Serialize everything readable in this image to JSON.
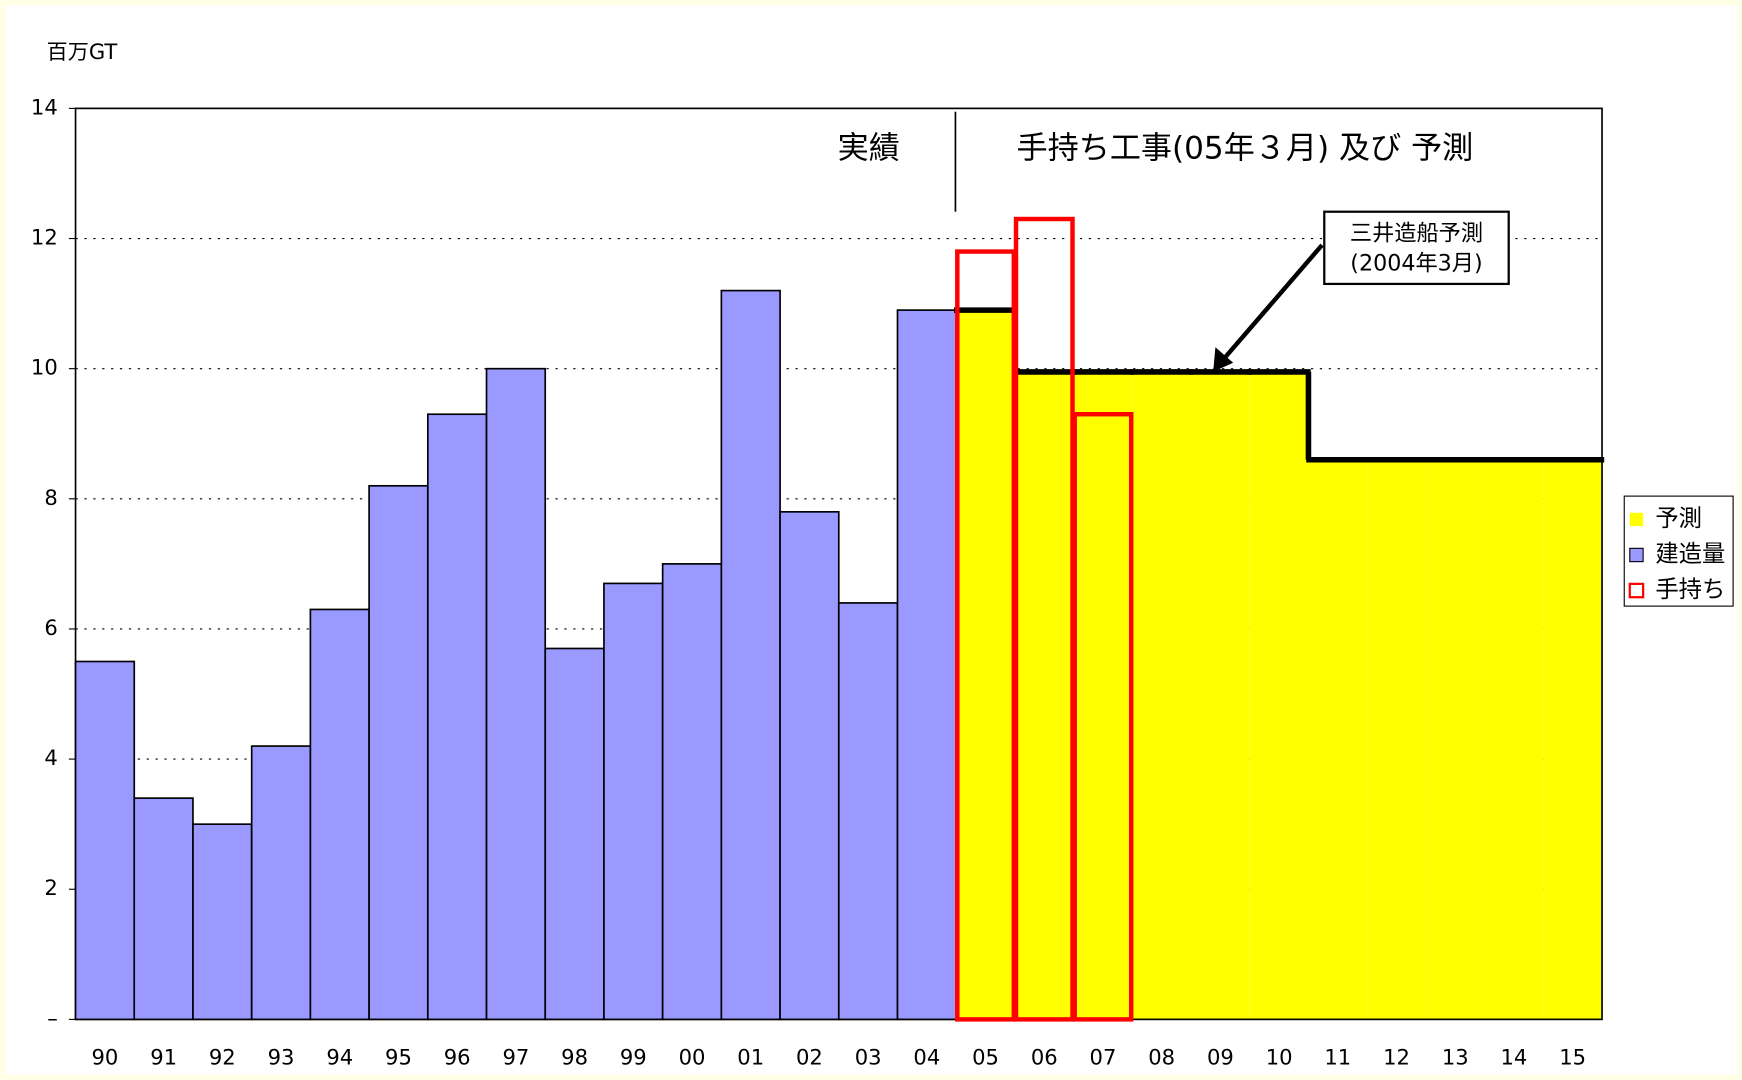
{
  "chart_data": {
    "type": "bar",
    "y_label": "百万GT",
    "categories": [
      "90",
      "91",
      "92",
      "93",
      "94",
      "95",
      "96",
      "97",
      "98",
      "99",
      "00",
      "01",
      "02",
      "03",
      "04",
      "05",
      "06",
      "07",
      "08",
      "09",
      "10",
      "11",
      "12",
      "13",
      "14",
      "15"
    ],
    "series": [
      {
        "name": "予測",
        "color": "#ffff00",
        "values": [
          null,
          null,
          null,
          null,
          null,
          null,
          null,
          null,
          null,
          null,
          null,
          null,
          null,
          null,
          null,
          10.9,
          9.95,
          9.95,
          9.95,
          9.95,
          9.95,
          8.6,
          8.6,
          8.6,
          8.6,
          8.6
        ]
      },
      {
        "name": "建造量",
        "color": "#9999ff",
        "values": [
          5.5,
          3.4,
          3.0,
          4.2,
          6.3,
          8.2,
          9.3,
          10.0,
          5.7,
          6.7,
          7.0,
          11.2,
          7.8,
          6.4,
          10.9,
          null,
          null,
          null,
          null,
          null,
          null,
          null,
          null,
          null,
          null,
          null
        ]
      },
      {
        "name": "手持ち",
        "color": "#ff0000",
        "values": [
          null,
          null,
          null,
          null,
          null,
          null,
          null,
          null,
          null,
          null,
          null,
          null,
          null,
          null,
          null,
          11.8,
          12.3,
          9.3,
          null,
          null,
          null,
          null,
          null,
          null,
          null,
          null
        ]
      }
    ],
    "annotations": [
      "実績",
      "手持ち工事(05年３月) 及び 予測",
      "三井造船予測",
      "(2004年3月)"
    ],
    "ylim": [
      0,
      14
    ],
    "yticks": [
      {
        "value": 0,
        "label": "–"
      },
      2,
      4,
      6,
      8,
      10,
      12,
      14
    ],
    "grid": true,
    "legend": "right"
  }
}
